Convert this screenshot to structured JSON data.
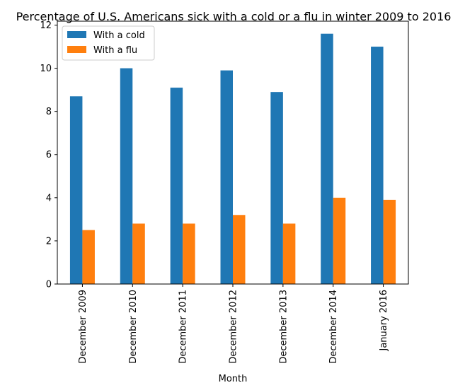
{
  "chart_data": {
    "type": "bar",
    "title": "Percentage of U.S. Americans sick with a cold or a flu in winter 2009 to 2016",
    "xlabel": "Month",
    "ylabel": "",
    "categories": [
      "December 2009",
      "December 2010",
      "December 2011",
      "December 2012",
      "December 2013",
      "December 2014",
      "January 2016"
    ],
    "series": [
      {
        "name": "With a cold",
        "color": "#1f77b4",
        "values": [
          8.7,
          10.0,
          9.1,
          9.9,
          8.9,
          11.6,
          11.0
        ]
      },
      {
        "name": "With a flu",
        "color": "#ff7f0e",
        "values": [
          2.5,
          2.8,
          2.8,
          3.2,
          2.8,
          4.0,
          3.9
        ]
      }
    ],
    "ylim": [
      0,
      12.18
    ],
    "yticks": [
      0,
      2,
      4,
      6,
      8,
      10,
      12
    ],
    "grid": false,
    "legend": "top-left"
  }
}
